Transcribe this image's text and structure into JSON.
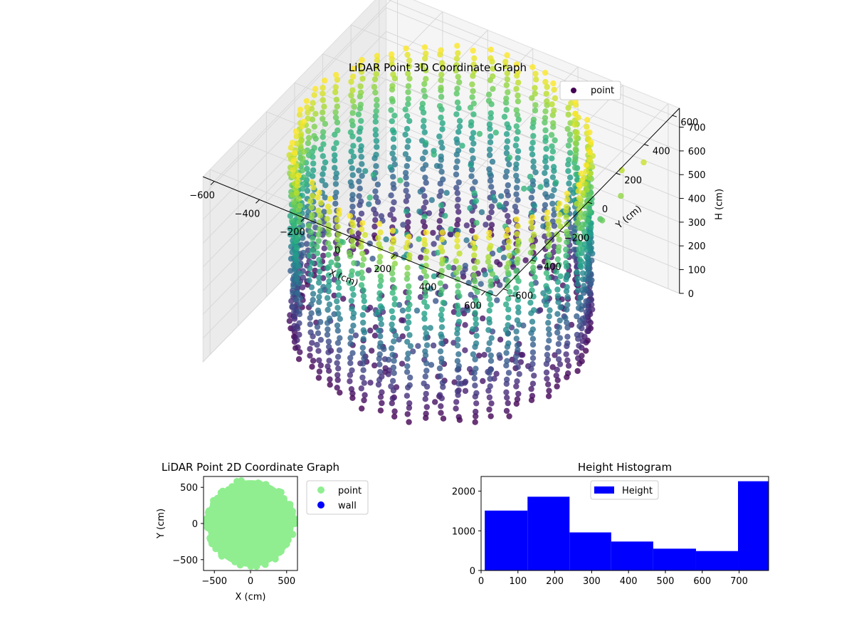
{
  "figure_title": "",
  "chart_data": [
    {
      "type": "scatter",
      "projection": "3d",
      "title": "LiDAR Point 3D Coordinate Graph",
      "xlabel": "X (cm)",
      "ylabel": "Y (cm)",
      "zlabel": "H (cm)",
      "xlim": [
        -650,
        650
      ],
      "ylim": [
        -650,
        650
      ],
      "zlim": [
        0,
        780
      ],
      "z_inverted": true,
      "xticks": [
        -600,
        -400,
        -200,
        0,
        200,
        400,
        600
      ],
      "yticks": [
        -600,
        -400,
        -200,
        0,
        200,
        400,
        600
      ],
      "zticks": [
        0,
        100,
        200,
        300,
        400,
        500,
        600,
        700
      ],
      "colormap": "viridis",
      "color_by": "H",
      "legend": {
        "placement": "upper-right",
        "entries": [
          {
            "label": "point",
            "color": "#440154"
          }
        ]
      },
      "series": [
        {
          "name": "point",
          "shape": "cylindrical-wall",
          "wall_radius_cm": 560,
          "height_range_cm": [
            0,
            780
          ],
          "vertical_strands": 56,
          "ceiling_points_near_center": true,
          "outlier_points": [
            {
              "x": 620,
              "y": 150,
              "h": 600
            },
            {
              "x": 640,
              "y": 250,
              "h": 650
            },
            {
              "x": 600,
              "y": 320,
              "h": 700
            },
            {
              "x": 660,
              "y": 380,
              "h": 720
            },
            {
              "x": 580,
              "y": 200,
              "h": 560
            }
          ]
        }
      ],
      "grid": true
    },
    {
      "type": "scatter",
      "title": "LiDAR Point 2D Coordinate Graph",
      "xlabel": "X (cm)",
      "ylabel": "Y (cm)",
      "xlim": [
        -650,
        650
      ],
      "ylim": [
        -650,
        650
      ],
      "xticks": [
        -500,
        0,
        500
      ],
      "yticks": [
        -500,
        0,
        500
      ],
      "legend": {
        "placement": "outside-right",
        "entries": [
          {
            "label": "point",
            "color": "#90ee90"
          },
          {
            "label": "wall",
            "color": "#0000ff"
          }
        ]
      },
      "series": [
        {
          "name": "point",
          "color": "#90ee90",
          "shape": "filled-disk",
          "radius_cm": 600,
          "center": [
            0,
            0
          ]
        },
        {
          "name": "wall",
          "color": "#0000ff",
          "points": []
        }
      ]
    },
    {
      "type": "bar",
      "subtype": "histogram",
      "title": "Height Histogram",
      "xlabel": "",
      "ylabel": "",
      "bins": [
        {
          "start": 10,
          "end": 126,
          "count": 1510
        },
        {
          "start": 126,
          "end": 240,
          "count": 1860
        },
        {
          "start": 240,
          "end": 353,
          "count": 960
        },
        {
          "start": 353,
          "end": 467,
          "count": 730
        },
        {
          "start": 467,
          "end": 583,
          "count": 550
        },
        {
          "start": 583,
          "end": 697,
          "count": 490
        },
        {
          "start": 697,
          "end": 780,
          "count": 2250
        }
      ],
      "xlim": [
        0,
        780
      ],
      "ylim": [
        0,
        2370
      ],
      "xticks": [
        0,
        100,
        200,
        300,
        400,
        500,
        600,
        700
      ],
      "yticks": [
        0,
        1000,
        2000
      ],
      "color": "#0000ff",
      "legend": {
        "placement": "upper-center",
        "entries": [
          {
            "label": "Height",
            "color": "#0000ff"
          }
        ]
      }
    }
  ]
}
